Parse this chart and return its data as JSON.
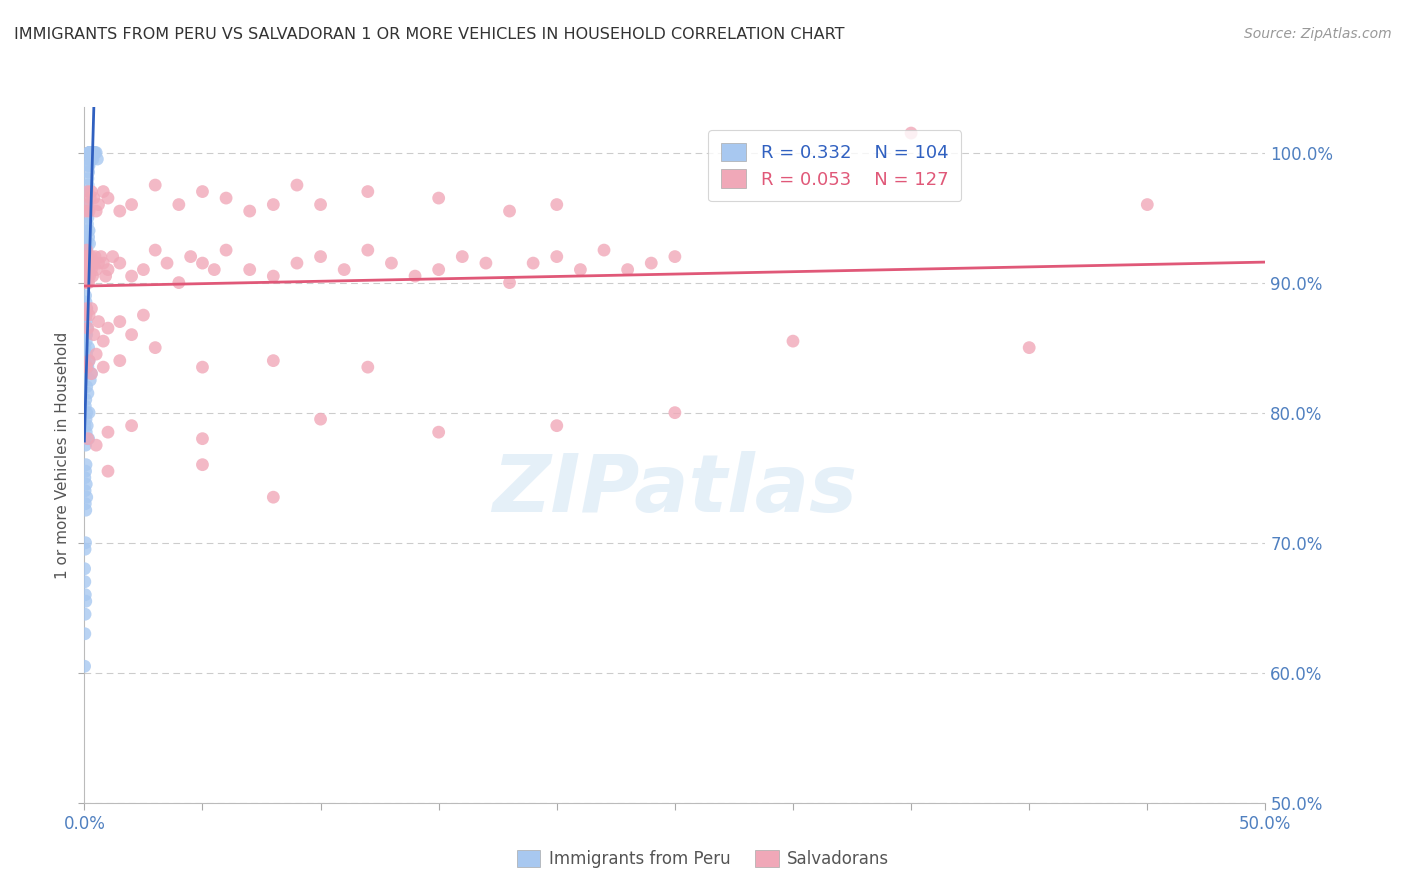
{
  "title": "IMMIGRANTS FROM PERU VS SALVADORAN 1 OR MORE VEHICLES IN HOUSEHOLD CORRELATION CHART",
  "source": "Source: ZipAtlas.com",
  "ylabel": "1 or more Vehicles in Household",
  "legend_blue_r": "0.332",
  "legend_blue_n": "104",
  "legend_pink_r": "0.053",
  "legend_pink_n": "127",
  "legend_label_blue": "Immigrants from Peru",
  "legend_label_pink": "Salvadorans",
  "watermark": "ZIPatlas",
  "blue_color": "#a8c8f0",
  "pink_color": "#f0a8b8",
  "blue_line_color": "#3060c0",
  "pink_line_color": "#e05878",
  "axis_color": "#5080c0",
  "title_color": "#333333",
  "grid_color": "#cccccc",
  "xmin": 0.0,
  "xmax": 50.0,
  "ymin": 50.0,
  "ymax": 103.5,
  "xtick_positions": [
    0,
    5,
    10,
    15,
    20,
    25,
    30,
    35,
    40,
    45,
    50
  ],
  "ytick_positions": [
    50,
    60,
    70,
    80,
    90,
    100
  ],
  "blue_scatter": [
    [
      0.05,
      93.5
    ],
    [
      0.07,
      90.0
    ],
    [
      0.08,
      92.0
    ],
    [
      0.1,
      94.0
    ],
    [
      0.1,
      88.0
    ],
    [
      0.12,
      95.5
    ],
    [
      0.13,
      96.0
    ],
    [
      0.14,
      97.0
    ],
    [
      0.15,
      98.0
    ],
    [
      0.15,
      95.0
    ],
    [
      0.16,
      97.5
    ],
    [
      0.17,
      99.0
    ],
    [
      0.18,
      98.5
    ],
    [
      0.19,
      99.5
    ],
    [
      0.2,
      100.0
    ],
    [
      0.2,
      99.0
    ],
    [
      0.21,
      100.0
    ],
    [
      0.22,
      100.0
    ],
    [
      0.23,
      100.0
    ],
    [
      0.24,
      100.0
    ],
    [
      0.25,
      100.0
    ],
    [
      0.26,
      100.0
    ],
    [
      0.27,
      100.0
    ],
    [
      0.28,
      99.5
    ],
    [
      0.3,
      100.0
    ],
    [
      0.32,
      100.0
    ],
    [
      0.33,
      100.0
    ],
    [
      0.35,
      100.0
    ],
    [
      0.36,
      99.5
    ],
    [
      0.38,
      100.0
    ],
    [
      0.4,
      100.0
    ],
    [
      0.42,
      100.0
    ],
    [
      0.45,
      100.0
    ],
    [
      0.5,
      100.0
    ],
    [
      0.55,
      99.5
    ],
    [
      0.04,
      91.0
    ],
    [
      0.05,
      89.0
    ],
    [
      0.06,
      90.5
    ],
    [
      0.07,
      88.5
    ],
    [
      0.08,
      91.5
    ],
    [
      0.09,
      87.0
    ],
    [
      0.1,
      86.0
    ],
    [
      0.11,
      92.5
    ],
    [
      0.12,
      93.0
    ],
    [
      0.13,
      94.5
    ],
    [
      0.15,
      92.0
    ],
    [
      0.16,
      91.0
    ],
    [
      0.18,
      93.5
    ],
    [
      0.2,
      94.0
    ],
    [
      0.22,
      93.0
    ],
    [
      0.03,
      85.0
    ],
    [
      0.04,
      84.0
    ],
    [
      0.05,
      86.0
    ],
    [
      0.06,
      87.5
    ],
    [
      0.07,
      83.0
    ],
    [
      0.08,
      85.5
    ],
    [
      0.09,
      84.5
    ],
    [
      0.1,
      82.0
    ],
    [
      0.12,
      86.5
    ],
    [
      0.15,
      83.5
    ],
    [
      0.18,
      85.0
    ],
    [
      0.2,
      84.0
    ],
    [
      0.25,
      82.5
    ],
    [
      0.3,
      83.0
    ],
    [
      0.02,
      79.0
    ],
    [
      0.03,
      78.0
    ],
    [
      0.04,
      80.5
    ],
    [
      0.05,
      77.5
    ],
    [
      0.06,
      81.0
    ],
    [
      0.07,
      79.5
    ],
    [
      0.08,
      78.5
    ],
    [
      0.1,
      80.0
    ],
    [
      0.12,
      79.0
    ],
    [
      0.15,
      81.5
    ],
    [
      0.18,
      78.0
    ],
    [
      0.2,
      80.0
    ],
    [
      0.02,
      75.0
    ],
    [
      0.03,
      74.0
    ],
    [
      0.04,
      73.0
    ],
    [
      0.05,
      75.5
    ],
    [
      0.06,
      72.5
    ],
    [
      0.07,
      76.0
    ],
    [
      0.08,
      74.5
    ],
    [
      0.1,
      73.5
    ],
    [
      0.01,
      68.0
    ],
    [
      0.02,
      67.0
    ],
    [
      0.03,
      69.5
    ],
    [
      0.04,
      66.0
    ],
    [
      0.05,
      70.0
    ],
    [
      0.06,
      65.5
    ],
    [
      0.02,
      63.0
    ],
    [
      0.03,
      64.5
    ],
    [
      0.01,
      60.5
    ]
  ],
  "pink_scatter": [
    [
      0.05,
      91.5
    ],
    [
      0.06,
      90.0
    ],
    [
      0.07,
      92.0
    ],
    [
      0.08,
      91.0
    ],
    [
      0.09,
      90.5
    ],
    [
      0.1,
      92.5
    ],
    [
      0.11,
      91.5
    ],
    [
      0.12,
      90.0
    ],
    [
      0.13,
      92.0
    ],
    [
      0.14,
      91.0
    ],
    [
      0.15,
      90.5
    ],
    [
      0.16,
      91.5
    ],
    [
      0.17,
      92.0
    ],
    [
      0.18,
      90.0
    ],
    [
      0.2,
      91.0
    ],
    [
      0.22,
      90.5
    ],
    [
      0.25,
      91.5
    ],
    [
      0.28,
      92.0
    ],
    [
      0.3,
      91.0
    ],
    [
      0.35,
      90.5
    ],
    [
      0.4,
      91.5
    ],
    [
      0.45,
      92.0
    ],
    [
      0.5,
      91.0
    ],
    [
      0.6,
      91.5
    ],
    [
      0.7,
      92.0
    ],
    [
      0.8,
      91.5
    ],
    [
      0.9,
      90.5
    ],
    [
      1.0,
      91.0
    ],
    [
      1.2,
      92.0
    ],
    [
      1.5,
      91.5
    ],
    [
      2.0,
      90.5
    ],
    [
      2.5,
      91.0
    ],
    [
      3.0,
      92.5
    ],
    [
      3.5,
      91.5
    ],
    [
      4.0,
      90.0
    ],
    [
      4.5,
      92.0
    ],
    [
      5.0,
      91.5
    ],
    [
      5.5,
      91.0
    ],
    [
      6.0,
      92.5
    ],
    [
      7.0,
      91.0
    ],
    [
      8.0,
      90.5
    ],
    [
      9.0,
      91.5
    ],
    [
      10.0,
      92.0
    ],
    [
      11.0,
      91.0
    ],
    [
      12.0,
      92.5
    ],
    [
      13.0,
      91.5
    ],
    [
      14.0,
      90.5
    ],
    [
      15.0,
      91.0
    ],
    [
      16.0,
      92.0
    ],
    [
      17.0,
      91.5
    ],
    [
      18.0,
      90.0
    ],
    [
      19.0,
      91.5
    ],
    [
      20.0,
      92.0
    ],
    [
      21.0,
      91.0
    ],
    [
      22.0,
      92.5
    ],
    [
      23.0,
      91.0
    ],
    [
      24.0,
      91.5
    ],
    [
      25.0,
      92.0
    ],
    [
      0.05,
      95.5
    ],
    [
      0.1,
      96.0
    ],
    [
      0.15,
      97.0
    ],
    [
      0.2,
      95.5
    ],
    [
      0.25,
      96.5
    ],
    [
      0.3,
      97.0
    ],
    [
      0.4,
      96.5
    ],
    [
      0.5,
      95.5
    ],
    [
      0.6,
      96.0
    ],
    [
      0.8,
      97.0
    ],
    [
      1.0,
      96.5
    ],
    [
      1.5,
      95.5
    ],
    [
      2.0,
      96.0
    ],
    [
      3.0,
      97.5
    ],
    [
      4.0,
      96.0
    ],
    [
      5.0,
      97.0
    ],
    [
      6.0,
      96.5
    ],
    [
      7.0,
      95.5
    ],
    [
      8.0,
      96.0
    ],
    [
      9.0,
      97.5
    ],
    [
      10.0,
      96.0
    ],
    [
      12.0,
      97.0
    ],
    [
      15.0,
      96.5
    ],
    [
      18.0,
      95.5
    ],
    [
      20.0,
      96.0
    ],
    [
      35.0,
      101.5
    ],
    [
      0.08,
      87.5
    ],
    [
      0.1,
      88.0
    ],
    [
      0.15,
      86.5
    ],
    [
      0.2,
      87.5
    ],
    [
      0.3,
      88.0
    ],
    [
      0.4,
      86.0
    ],
    [
      0.6,
      87.0
    ],
    [
      0.8,
      85.5
    ],
    [
      1.0,
      86.5
    ],
    [
      1.5,
      87.0
    ],
    [
      2.0,
      86.0
    ],
    [
      2.5,
      87.5
    ],
    [
      0.1,
      83.5
    ],
    [
      0.2,
      84.0
    ],
    [
      0.3,
      83.0
    ],
    [
      0.5,
      84.5
    ],
    [
      0.8,
      83.5
    ],
    [
      1.5,
      84.0
    ],
    [
      3.0,
      85.0
    ],
    [
      5.0,
      83.5
    ],
    [
      8.0,
      84.0
    ],
    [
      12.0,
      83.5
    ],
    [
      0.15,
      78.0
    ],
    [
      0.5,
      77.5
    ],
    [
      1.0,
      78.5
    ],
    [
      2.0,
      79.0
    ],
    [
      5.0,
      78.0
    ],
    [
      10.0,
      79.5
    ],
    [
      15.0,
      78.5
    ],
    [
      20.0,
      79.0
    ],
    [
      25.0,
      80.0
    ],
    [
      30.0,
      85.5
    ],
    [
      40.0,
      85.0
    ],
    [
      1.0,
      75.5
    ],
    [
      5.0,
      76.0
    ],
    [
      8.0,
      73.5
    ],
    [
      45.0,
      96.0
    ]
  ]
}
